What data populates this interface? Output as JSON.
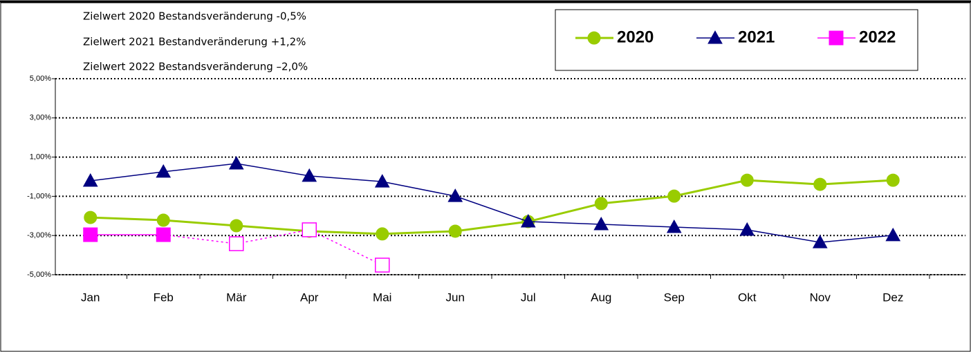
{
  "chart_data": {
    "type": "line",
    "annotations": [
      "Zielwert 2020 Bestandsveränderung  -0,5%",
      "Zielwert 2021 Bestandveränderung +1,2%",
      "Zielwert 2022 Bestandsveränderung –2,0%"
    ],
    "categories": [
      "Jan",
      "Feb",
      "Mär",
      "Apr",
      "Mai",
      "Jun",
      "Jul",
      "Aug",
      "Sep",
      "Okt",
      "Nov",
      "Dez"
    ],
    "series": [
      {
        "name": "2020",
        "color": "#99cc00",
        "marker": "circle",
        "values": [
          -2.08,
          -2.22,
          -2.5,
          -2.78,
          -2.92,
          -2.78,
          -2.29,
          -1.37,
          -0.99,
          -0.18,
          -0.39,
          -0.18
        ]
      },
      {
        "name": "2021",
        "color": "#000080",
        "marker": "triangle",
        "values": [
          -0.21,
          0.25,
          0.67,
          0.04,
          -0.25,
          -0.99,
          -2.29,
          -2.43,
          -2.57,
          -2.71,
          -3.35,
          -2.99
        ]
      },
      {
        "name": "2022",
        "color": "#ff00ff",
        "marker": "square",
        "values": [
          -2.96,
          -2.96,
          -3.42,
          -2.71,
          -4.51,
          null,
          null,
          null,
          null,
          null,
          null,
          null
        ]
      }
    ],
    "ylim": [
      -5,
      5
    ],
    "yticks": [
      {
        "value": -5,
        "label": "-5,00%"
      },
      {
        "value": -3,
        "label": "-3,00%"
      },
      {
        "value": -1,
        "label": "-1,00%"
      },
      {
        "value": 1,
        "label": "1,00%"
      },
      {
        "value": 3,
        "label": "3,00%"
      },
      {
        "value": 5,
        "label": "5,00%"
      }
    ],
    "grid": true,
    "legend": "top-right"
  }
}
